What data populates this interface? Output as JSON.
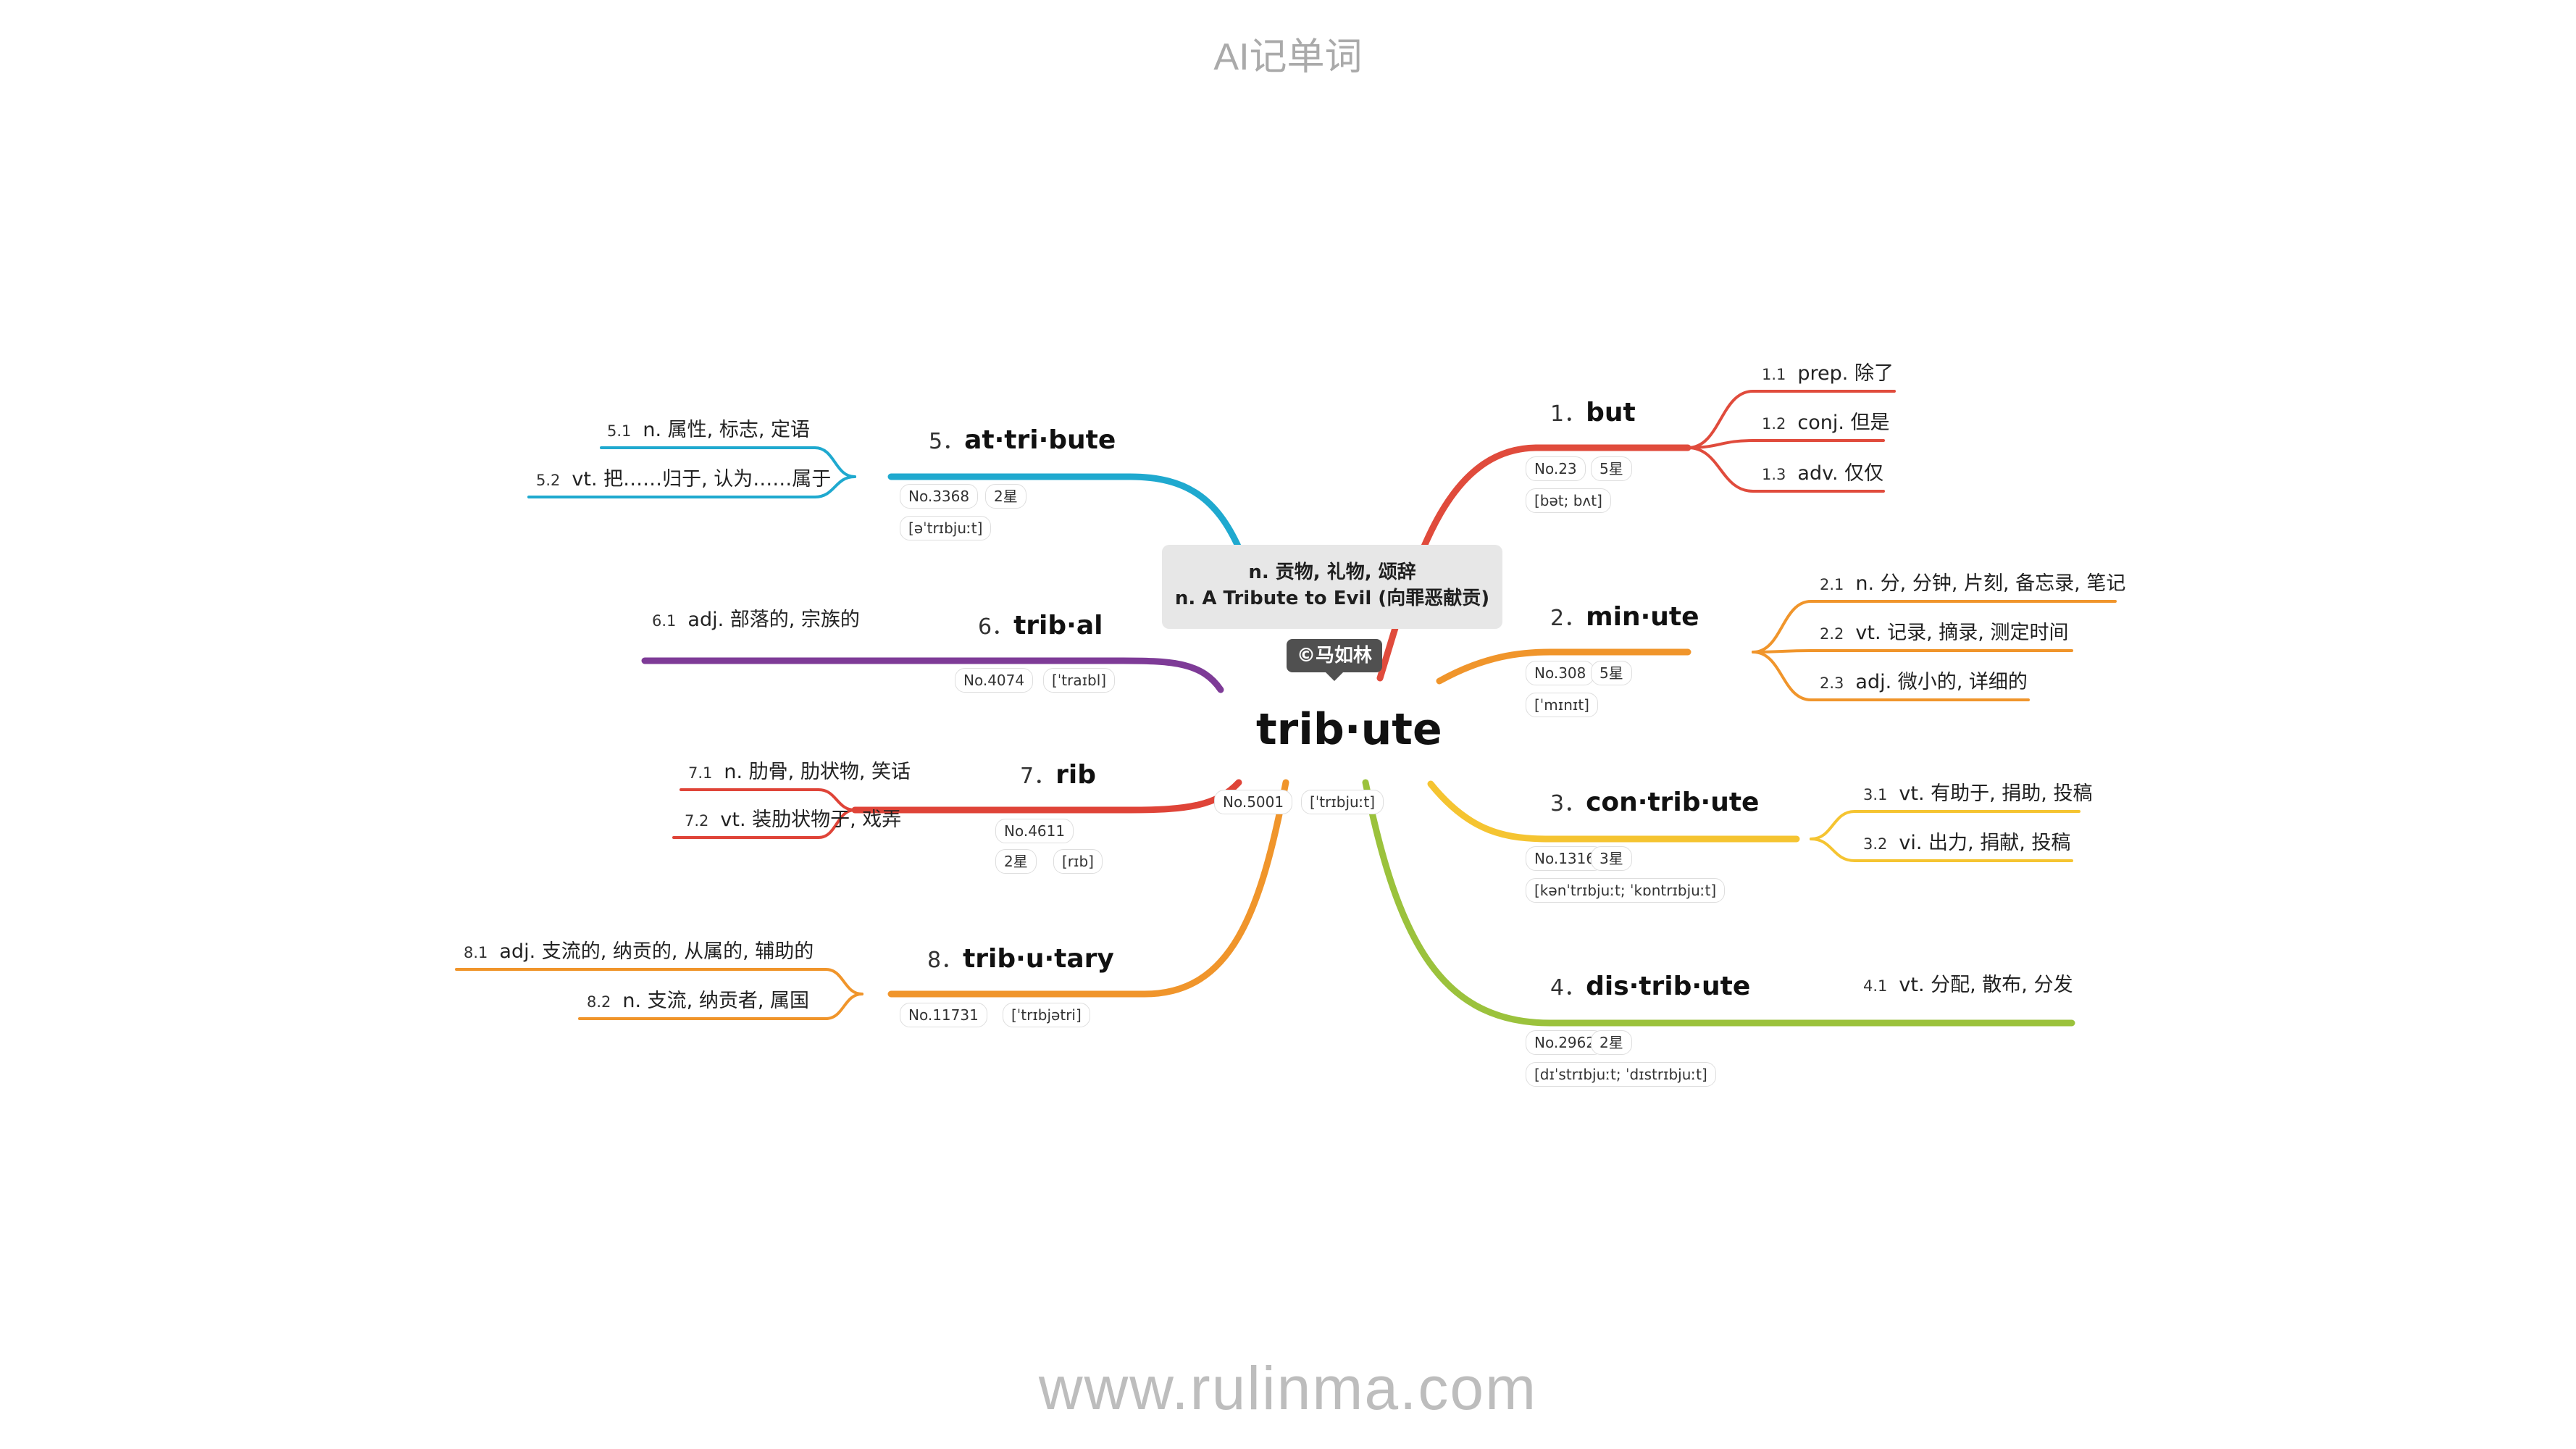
{
  "header": {
    "title": "AI记单词"
  },
  "footer": {
    "url": "www.rulinma.com"
  },
  "center": {
    "word": "trib·ute",
    "definitions": [
      "n. 贡物, 礼物, 颂辞",
      "n. A Tribute to Evil (向罪恶献贡)"
    ],
    "author": "©马如林",
    "rank": "No.5001",
    "phonetic": "[ˈtrɪbjuːt]"
  },
  "branches": [
    {
      "num": "1．",
      "word": "but",
      "rank": "No.23",
      "stars": "5星",
      "phonetic": "[bət; bʌt]",
      "color": "#e04b3c",
      "senses": [
        {
          "id": "1.1",
          "text": "prep. 除了"
        },
        {
          "id": "1.2",
          "text": "conj. 但是"
        },
        {
          "id": "1.3",
          "text": "adv. 仅仅"
        }
      ]
    },
    {
      "num": "2．",
      "word": "min·ute",
      "rank": "No.308",
      "stars": "5星",
      "phonetic": "[ˈmɪnɪt]",
      "color": "#f0952b",
      "senses": [
        {
          "id": "2.1",
          "text": "n. 分, 分钟, 片刻, 备忘录, 笔记"
        },
        {
          "id": "2.2",
          "text": "vt. 记录, 摘录, 测定时间"
        },
        {
          "id": "2.3",
          "text": "adj. 微小的, 详细的"
        }
      ]
    },
    {
      "num": "3．",
      "word": "con·trib·ute",
      "rank": "No.1316",
      "stars": "3星",
      "phonetic": "[kənˈtrɪbjuːt; ˈkɒntrɪbjuːt]",
      "color": "#f5c431",
      "senses": [
        {
          "id": "3.1",
          "text": "vt. 有助于, 捐助, 投稿"
        },
        {
          "id": "3.2",
          "text": "vi. 出力, 捐献, 投稿"
        }
      ]
    },
    {
      "num": "4．",
      "word": "dis·trib·ute",
      "rank": "No.2962",
      "stars": "2星",
      "phonetic": "[dɪˈstrɪbjuːt; ˈdɪstrɪbjuːt]",
      "color": "#9bc23c",
      "senses": [
        {
          "id": "4.1",
          "text": "vt. 分配, 散布, 分发"
        }
      ]
    },
    {
      "num": "5．",
      "word": "at·tri·bute",
      "rank": "No.3368",
      "stars": "2星",
      "phonetic": "[əˈtrɪbjuːt]",
      "color": "#1fa9cf",
      "senses": [
        {
          "id": "5.1",
          "text": "n. 属性, 标志, 定语"
        },
        {
          "id": "5.2",
          "text": "vt. 把……归于, 认为……属于"
        }
      ]
    },
    {
      "num": "6．",
      "word": "trib·al",
      "rank": "No.4074",
      "phonetic": "[ˈtraɪbl]",
      "color": "#7e3b97",
      "senses": [
        {
          "id": "6.1",
          "text": "adj. 部落的, 宗族的"
        }
      ]
    },
    {
      "num": "7．",
      "word": "rib",
      "rank": "No.4611",
      "stars": "2星",
      "phonetic": "[rɪb]",
      "color": "#df4438",
      "senses": [
        {
          "id": "7.1",
          "text": "n. 肋骨, 肋状物, 笑话"
        },
        {
          "id": "7.2",
          "text": "vt. 装肋状物于, 戏弄"
        }
      ]
    },
    {
      "num": "8．",
      "word": "trib·u·tary",
      "rank": "No.11731",
      "phonetic": "[ˈtrɪbjətri]",
      "color": "#f0952b",
      "senses": [
        {
          "id": "8.1",
          "text": "adj. 支流的, 纳贡的, 从属的, 辅助的"
        },
        {
          "id": "8.2",
          "text": "n. 支流, 纳贡者, 属国"
        }
      ]
    }
  ]
}
